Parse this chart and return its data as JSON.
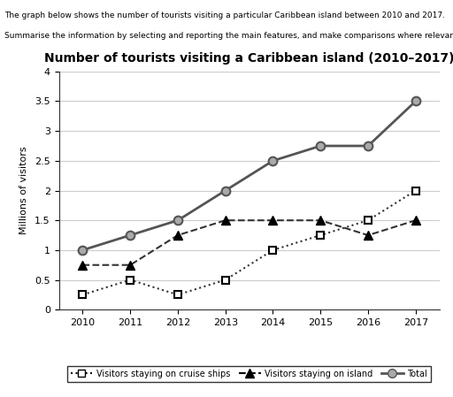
{
  "title": "Number of tourists visiting a Caribbean island (2010–2017)",
  "header_line1": "The graph below shows the number of tourists visiting a particular Caribbean island between 2010 and 2017.",
  "header_line2": "Summarise the information by selecting and reporting the main features, and make comparisons where relevant.",
  "ylabel": "Millions of visitors",
  "years": [
    2010,
    2011,
    2012,
    2013,
    2014,
    2015,
    2016,
    2017
  ],
  "cruise_ships": [
    0.25,
    0.5,
    0.25,
    0.5,
    1.0,
    1.25,
    1.5,
    2.0
  ],
  "on_island": [
    0.75,
    0.75,
    1.25,
    1.5,
    1.5,
    1.5,
    1.25,
    1.5
  ],
  "total": [
    1.0,
    1.25,
    1.5,
    2.0,
    2.5,
    2.75,
    2.75,
    3.5
  ],
  "ylim": [
    0,
    4
  ],
  "yticks": [
    0,
    0.5,
    1.0,
    1.5,
    2.0,
    2.5,
    3.0,
    3.5,
    4.0
  ],
  "color_cruise": "#333333",
  "color_island": "#333333",
  "color_total": "#555555",
  "background_color": "#ffffff",
  "grid_color": "#cccccc"
}
